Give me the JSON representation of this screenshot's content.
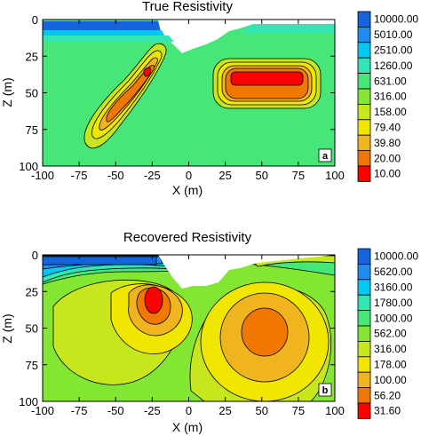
{
  "chart_data": [
    {
      "type": "heatmap",
      "title": "True Resistivity",
      "panel_label": "a",
      "xlabel": "X (m)",
      "ylabel": "Z (m)",
      "xlim": [
        -100,
        100
      ],
      "ylim": [
        100,
        0
      ],
      "xticks": [
        "-100",
        "-75",
        "-50",
        "-25",
        "0",
        "25",
        "50",
        "75",
        "100"
      ],
      "yticks": [
        "0",
        "25",
        "50",
        "75",
        "100"
      ],
      "colorbar": {
        "labels": [
          "10000.00",
          "5010.00",
          "2510.00",
          "1260.00",
          "631.00",
          "316.00",
          "158.00",
          "79.40",
          "39.80",
          "20.00",
          "10.00"
        ],
        "colors": [
          "#1464dc",
          "#1e8cf0",
          "#00c8f0",
          "#32e6b4",
          "#46e678",
          "#82e632",
          "#c8e61e",
          "#f0e600",
          "#f0b41e",
          "#f07800",
          "#ff0000"
        ]
      },
      "background_resistivity": 631,
      "features": [
        {
          "name": "near-surface high-resistivity layer",
          "x_range": [
            -100,
            -20
          ],
          "z_range": [
            0,
            10
          ],
          "resistivity": 10000
        },
        {
          "name": "dipping conductor",
          "from": [
            -55,
            60
          ],
          "to": [
            -25,
            27
          ],
          "min_resistivity": 20
        },
        {
          "name": "block conductor",
          "x_range": [
            30,
            70
          ],
          "z_range": [
            30,
            50
          ],
          "min_resistivity": 10
        }
      ]
    },
    {
      "type": "heatmap",
      "title": "Recovered Resistivity",
      "panel_label": "b",
      "xlabel": "X (m)",
      "ylabel": "Z (m)",
      "xlim": [
        -100,
        100
      ],
      "ylim": [
        100,
        0
      ],
      "xticks": [
        "-100",
        "-75",
        "-50",
        "-25",
        "0",
        "25",
        "50",
        "75",
        "100"
      ],
      "yticks": [
        "0",
        "25",
        "50",
        "75",
        "100"
      ],
      "colorbar": {
        "labels": [
          "10000.00",
          "5620.00",
          "3160.00",
          "1780.00",
          "1000.00",
          "562.00",
          "316.00",
          "178.00",
          "100.00",
          "56.20",
          "31.60"
        ],
        "colors": [
          "#1464dc",
          "#1e8cf0",
          "#00c8f0",
          "#32e6b4",
          "#46e678",
          "#82e632",
          "#c8e61e",
          "#f0e600",
          "#f0b41e",
          "#f07800",
          "#ff0000"
        ]
      },
      "features": [
        {
          "name": "recovered dipping conductor",
          "center": [
            -25,
            32
          ],
          "min_resistivity": 56.2
        },
        {
          "name": "recovered block conductor",
          "center": [
            43,
            47
          ],
          "min_resistivity": 100
        }
      ]
    }
  ]
}
